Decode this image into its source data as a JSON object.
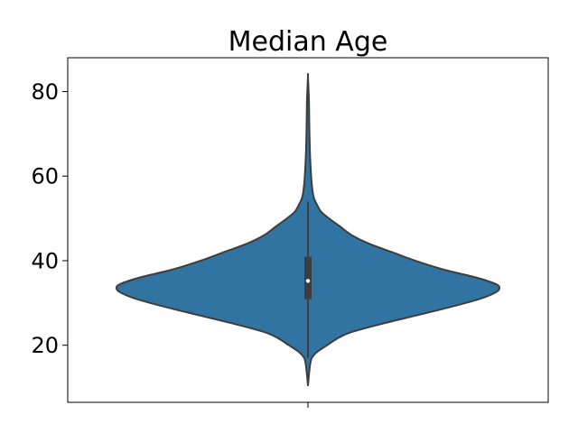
{
  "chart_data": {
    "type": "violin",
    "title": "Median Age",
    "xlabel": "",
    "ylabel": "",
    "ylim": [
      6.5,
      88.0
    ],
    "y_ticks": [
      {
        "value": 20,
        "label": "20"
      },
      {
        "value": 40,
        "label": "40"
      },
      {
        "value": 60,
        "label": "60"
      },
      {
        "value": 80,
        "label": "80"
      }
    ],
    "grid": false,
    "violin": {
      "fill_color": "#3274a1",
      "edge_color": "#3d3d3d",
      "min": 10.5,
      "max": 83.5,
      "q1": 31.0,
      "median": 35.2,
      "q3": 40.8,
      "whisker_low": 17.0,
      "whisker_high": 54.0,
      "density": [
        {
          "y": 10.5,
          "width": 0.0
        },
        {
          "y": 15.0,
          "width": 0.01
        },
        {
          "y": 17.0,
          "width": 0.02
        },
        {
          "y": 18.5,
          "width": 0.05
        },
        {
          "y": 20.0,
          "width": 0.1
        },
        {
          "y": 21.5,
          "width": 0.15
        },
        {
          "y": 23.0,
          "width": 0.22
        },
        {
          "y": 25.0,
          "width": 0.38
        },
        {
          "y": 27.0,
          "width": 0.56
        },
        {
          "y": 29.0,
          "width": 0.74
        },
        {
          "y": 31.0,
          "width": 0.9
        },
        {
          "y": 32.5,
          "width": 0.98
        },
        {
          "y": 33.5,
          "width": 1.0
        },
        {
          "y": 34.5,
          "width": 0.98
        },
        {
          "y": 36.0,
          "width": 0.88
        },
        {
          "y": 38.0,
          "width": 0.7
        },
        {
          "y": 40.0,
          "width": 0.56
        },
        {
          "y": 42.0,
          "width": 0.44
        },
        {
          "y": 44.0,
          "width": 0.32
        },
        {
          "y": 46.0,
          "width": 0.23
        },
        {
          "y": 48.0,
          "width": 0.17
        },
        {
          "y": 50.0,
          "width": 0.11
        },
        {
          "y": 51.5,
          "width": 0.07
        },
        {
          "y": 53.0,
          "width": 0.05
        },
        {
          "y": 55.0,
          "width": 0.03
        },
        {
          "y": 58.0,
          "width": 0.02
        },
        {
          "y": 62.0,
          "width": 0.014
        },
        {
          "y": 66.0,
          "width": 0.01
        },
        {
          "y": 72.0,
          "width": 0.007
        },
        {
          "y": 78.0,
          "width": 0.005
        },
        {
          "y": 83.5,
          "width": 0.0
        }
      ]
    }
  }
}
